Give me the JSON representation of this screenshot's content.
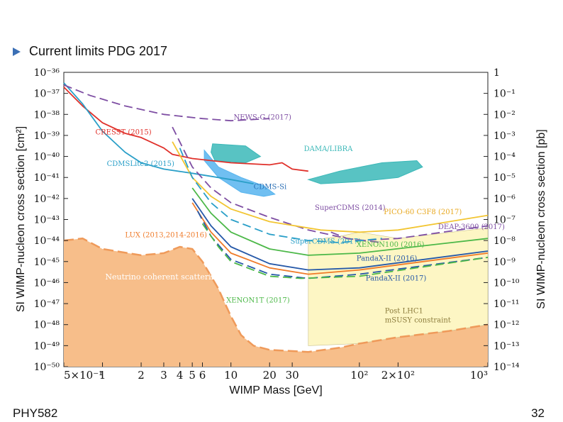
{
  "slide": {
    "bullet_text": "Current limits PDG 2017",
    "footer_left": "PHY582",
    "page_number": "32"
  },
  "chart_data": {
    "type": "line",
    "xlabel": "WIMP Mass [GeV]",
    "ylabel": "SI WIMP-nucleon cross section [cm²]",
    "ylabel_right": "SI WIMP-nucleon cross section [pb]",
    "x_scale": "log",
    "y_scale": "log",
    "xlim": [
      0.5,
      1000
    ],
    "ylim": [
      1e-50,
      1e-36
    ],
    "x_ticks": [
      {
        "v": 0.5,
        "t": "5×10⁻¹"
      },
      {
        "v": 1,
        "t": "1"
      },
      {
        "v": 2,
        "t": "2"
      },
      {
        "v": 3,
        "t": "3"
      },
      {
        "v": 4,
        "t": "4"
      },
      {
        "v": 5,
        "t": "5"
      },
      {
        "v": 6,
        "t": "6"
      },
      {
        "v": 10,
        "t": "10"
      },
      {
        "v": 20,
        "t": "20"
      },
      {
        "v": 30,
        "t": "30"
      },
      {
        "v": 100,
        "t": "10²"
      },
      {
        "v": 200,
        "t": "2×10²"
      },
      {
        "v": 1000,
        "t": "10³"
      }
    ],
    "y_ticks_left": [
      "10⁻³⁶",
      "10⁻³⁷",
      "10⁻³⁸",
      "10⁻³⁹",
      "10⁻⁴⁰",
      "10⁻⁴¹",
      "10⁻⁴²",
      "10⁻⁴³",
      "10⁻⁴⁴",
      "10⁻⁴⁵",
      "10⁻⁴⁶",
      "10⁻⁴⁷",
      "10⁻⁴⁸",
      "10⁻⁴⁹",
      "10⁻⁵⁰"
    ],
    "y_ticks_right": [
      "1",
      "10⁻¹",
      "10⁻²",
      "10⁻³",
      "10⁻⁴",
      "10⁻⁵",
      "10⁻⁶",
      "10⁻⁷",
      "10⁻⁸",
      "10⁻⁹",
      "10⁻¹⁰",
      "10⁻¹¹",
      "10⁻¹²",
      "10⁻¹³",
      "10⁻¹⁴"
    ],
    "series": [
      {
        "name": "CRESST (2015)",
        "color": "#e0302a",
        "dash": false,
        "points": [
          [
            0.5,
            -36.7
          ],
          [
            0.7,
            -37.6
          ],
          [
            1,
            -38.4
          ],
          [
            1.5,
            -38.9
          ],
          [
            2,
            -39.1
          ],
          [
            3,
            -39.6
          ],
          [
            3.5,
            -39.9
          ],
          [
            5,
            -40.1
          ],
          [
            10,
            -40.3
          ],
          [
            20,
            -40.4
          ],
          [
            25,
            -40.3
          ],
          [
            30,
            -40.6
          ],
          [
            40,
            -40.7
          ]
        ]
      },
      {
        "name": "CDMSLite2 (2015)",
        "color": "#2a9fc8",
        "dash": false,
        "points": [
          [
            0.5,
            -36.5
          ],
          [
            0.7,
            -37.5
          ],
          [
            1,
            -38.8
          ],
          [
            1.5,
            -39.8
          ],
          [
            2,
            -40.3
          ],
          [
            3,
            -40.6
          ],
          [
            5,
            -40.8
          ],
          [
            10,
            -41.1
          ],
          [
            15,
            -41.3
          ]
        ]
      },
      {
        "name": "NEWS-G (2017)",
        "color": "#7e4ea3",
        "dash": true,
        "points": [
          [
            0.5,
            -36.6
          ],
          [
            0.8,
            -37.1
          ],
          [
            1.5,
            -37.6
          ],
          [
            3,
            -38
          ],
          [
            6,
            -38.2
          ],
          [
            10,
            -38.3
          ],
          [
            20,
            -38.2
          ]
        ]
      },
      {
        "name": "SuperCDMS (2014)",
        "color": "#7e4ea3",
        "dash": true,
        "points": [
          [
            3.5,
            -38.6
          ],
          [
            5,
            -40.5
          ],
          [
            7,
            -41.5
          ],
          [
            10,
            -42.2
          ],
          [
            20,
            -42.9
          ],
          [
            40,
            -43.5
          ],
          [
            80,
            -43.9
          ],
          [
            150,
            -44.1
          ]
        ]
      },
      {
        "name": "PICO-60 C3F8 (2017)",
        "color": "#f2c531",
        "dash": false,
        "points": [
          [
            3.5,
            -39.3
          ],
          [
            5,
            -41
          ],
          [
            7,
            -41.9
          ],
          [
            10,
            -42.5
          ],
          [
            20,
            -43.1
          ],
          [
            50,
            -43.5
          ],
          [
            100,
            -43.6
          ],
          [
            200,
            -43.5
          ],
          [
            1000,
            -42.8
          ]
        ]
      },
      {
        "name": "DEAP-3600 (2017)",
        "color": "#7e4ea3",
        "dash": true,
        "points": [
          [
            60,
            -43.6
          ],
          [
            80,
            -43.9
          ],
          [
            100,
            -44
          ],
          [
            200,
            -43.9
          ],
          [
            1000,
            -43.3
          ]
        ]
      },
      {
        "name": "SuperCDMS (2017)",
        "color": "#2a9fc8",
        "dash": true,
        "points": [
          [
            4,
            -39.6
          ],
          [
            5,
            -41
          ],
          [
            7,
            -42.2
          ],
          [
            10,
            -43
          ],
          [
            20,
            -43.7
          ],
          [
            40,
            -44
          ],
          [
            70,
            -44.1
          ],
          [
            150,
            -43.9
          ]
        ]
      },
      {
        "name": "XENON100 (2016)",
        "color": "#4cb848",
        "dash": false,
        "points": [
          [
            5,
            -41.5
          ],
          [
            7,
            -42.7
          ],
          [
            10,
            -43.6
          ],
          [
            20,
            -44.4
          ],
          [
            40,
            -44.7
          ],
          [
            100,
            -44.6
          ],
          [
            1000,
            -43.9
          ]
        ]
      },
      {
        "name": "PandaX-II (2016)",
        "color": "#2558a8",
        "dash": false,
        "points": [
          [
            5,
            -42
          ],
          [
            7,
            -43.3
          ],
          [
            10,
            -44.3
          ],
          [
            20,
            -45.1
          ],
          [
            40,
            -45.4
          ],
          [
            100,
            -45.3
          ],
          [
            1000,
            -44.5
          ]
        ]
      },
      {
        "name": "LUX (2013,2014-2016)",
        "color": "#ef7b2a",
        "dash": false,
        "points": [
          [
            5,
            -42.2
          ],
          [
            7,
            -43.6
          ],
          [
            10,
            -44.6
          ],
          [
            20,
            -45.3
          ],
          [
            40,
            -45.6
          ],
          [
            100,
            -45.4
          ],
          [
            1000,
            -44.6
          ]
        ]
      },
      {
        "name": "PandaX-II (2017)",
        "color": "#2558a8",
        "dash": true,
        "points": [
          [
            5.5,
            -42.6
          ],
          [
            7,
            -43.8
          ],
          [
            10,
            -44.9
          ],
          [
            20,
            -45.6
          ],
          [
            40,
            -45.8
          ],
          [
            100,
            -45.6
          ],
          [
            1000,
            -44.8
          ]
        ]
      },
      {
        "name": "XENON1T (2017)",
        "color": "#4cb848",
        "dash": true,
        "points": [
          [
            6,
            -43.2
          ],
          [
            8,
            -44.3
          ],
          [
            10,
            -45
          ],
          [
            20,
            -45.7
          ],
          [
            35,
            -45.8
          ],
          [
            100,
            -45.7
          ],
          [
            1000,
            -44.8
          ]
        ]
      }
    ],
    "regions": [
      {
        "name": "DAMA/LIBRA",
        "color": "#3bb8b8",
        "points": [
          [
            7.2,
            -39.4
          ],
          [
            13,
            -39.5
          ],
          [
            17,
            -40
          ],
          [
            13,
            -40.3
          ],
          [
            7.5,
            -40.2
          ],
          [
            7,
            -39.8
          ]
        ]
      },
      {
        "name": "DAMA/LIBRA",
        "color": "#3bb8b8",
        "points": [
          [
            40,
            -41.1
          ],
          [
            70,
            -40.7
          ],
          [
            150,
            -40.3
          ],
          [
            280,
            -40.2
          ],
          [
            310,
            -40.5
          ],
          [
            200,
            -41
          ],
          [
            100,
            -41.2
          ],
          [
            50,
            -41.3
          ]
        ]
      },
      {
        "name": "CDMS-Si",
        "color": "#57b4ee",
        "points": [
          [
            6.2,
            -39.7
          ],
          [
            8,
            -40.5
          ],
          [
            12,
            -41
          ],
          [
            18,
            -41.4
          ],
          [
            22,
            -41.8
          ],
          [
            18,
            -41.9
          ],
          [
            12,
            -41.7
          ],
          [
            8,
            -41
          ],
          [
            6.2,
            -40.2
          ]
        ]
      }
    ],
    "neutrino_floor": {
      "name": "Neutrino coherent scattering",
      "color": "#f7be8a",
      "points": [
        [
          0.5,
          -44
        ],
        [
          0.7,
          -43.9
        ],
        [
          1,
          -44.4
        ],
        [
          2,
          -44.7
        ],
        [
          3,
          -44.6
        ],
        [
          4,
          -44.3
        ],
        [
          5,
          -44.4
        ],
        [
          6,
          -45
        ],
        [
          8,
          -46.3
        ],
        [
          9,
          -47
        ],
        [
          10,
          -47.6
        ],
        [
          12,
          -48.5
        ],
        [
          15,
          -49
        ],
        [
          20,
          -49.2
        ],
        [
          40,
          -49.3
        ],
        [
          70,
          -49.1
        ],
        [
          100,
          -48.9
        ],
        [
          200,
          -48.6
        ],
        [
          500,
          -48.3
        ],
        [
          1000,
          -48
        ]
      ]
    },
    "lhc_region": {
      "name": "Post LHC1 mSUSY constraint",
      "color": "#fdf6c4",
      "points": [
        [
          40,
          -44
        ],
        [
          70,
          -43.8
        ],
        [
          100,
          -43.6
        ],
        [
          200,
          -43.9
        ],
        [
          1000,
          -43.4
        ],
        [
          1000,
          -48
        ],
        [
          500,
          -48.3
        ],
        [
          200,
          -48.6
        ],
        [
          100,
          -48.9
        ],
        [
          40,
          -49
        ]
      ]
    },
    "annotations": [
      {
        "text": "NEWS-G (2017)",
        "color": "#7e4ea3",
        "x": 10.5,
        "y": -38.25,
        "anchor": "start"
      },
      {
        "text": "CRESST (2015)",
        "color": "#e0302a",
        "x": 0.88,
        "y": -38.95,
        "anchor": "start"
      },
      {
        "text": "CDMSLite2 (2015)",
        "color": "#2a9fc8",
        "x": 1.08,
        "y": -40.45,
        "anchor": "start"
      },
      {
        "text": "DAMA/LIBRA",
        "color": "#3bb8b8",
        "x": 37,
        "y": -39.75,
        "anchor": "start"
      },
      {
        "text": "CDMS-Si",
        "color": "#2a6fb5",
        "x": 15,
        "y": -41.55,
        "anchor": "start"
      },
      {
        "text": "SuperCDMS (2014)",
        "color": "#7e4ea3",
        "x": 45,
        "y": -42.55,
        "anchor": "start"
      },
      {
        "text": "PICO-60 C3F8 (2017)",
        "color": "#e8a820",
        "x": 155,
        "y": -42.75,
        "anchor": "start"
      },
      {
        "text": "DEAP-3600 (2017)",
        "color": "#7e4ea3",
        "x": 410,
        "y": -43.45,
        "anchor": "start"
      },
      {
        "text": "LUX (2013,2014-2016)",
        "color": "#ef7b2a",
        "x": 1.5,
        "y": -43.85,
        "anchor": "start"
      },
      {
        "text": "SuperCDMS (2017)",
        "color": "#2a9fc8",
        "x": 29,
        "y": -44.15,
        "anchor": "start"
      },
      {
        "text": "XENON100 (2016)",
        "color": "#4cb848",
        "x": 95,
        "y": -44.3,
        "anchor": "start"
      },
      {
        "text": "PandaX-II (2016)",
        "color": "#2558a8",
        "x": 95,
        "y": -44.95,
        "anchor": "start"
      },
      {
        "text": "Neutrino coherent scattering",
        "color": "#ffffff",
        "x": 1.05,
        "y": -45.85,
        "anchor": "start"
      },
      {
        "text": "PandaX-II (2017)",
        "color": "#2558a8",
        "x": 112,
        "y": -45.9,
        "anchor": "start"
      },
      {
        "text": "XENON1T (2017)",
        "color": "#4cb848",
        "x": 9.2,
        "y": -46.95,
        "anchor": "start"
      },
      {
        "text": "Post LHC1",
        "color": "#8a7a3a",
        "x": 158,
        "y": -47.45,
        "anchor": "start"
      },
      {
        "text": "mSUSY constraint",
        "color": "#8a7a3a",
        "x": 158,
        "y": -47.9,
        "anchor": "start"
      }
    ]
  }
}
